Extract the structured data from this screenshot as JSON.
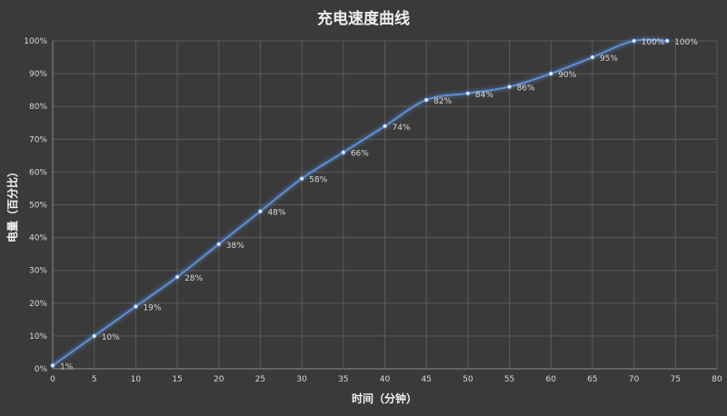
{
  "chart_data": {
    "type": "line",
    "title": "充电速度曲线",
    "xlabel": "时间（分钟）",
    "ylabel": "电量（百分比）",
    "xlim": [
      0,
      80
    ],
    "ylim": [
      0,
      100
    ],
    "x_ticks": [
      0,
      5,
      10,
      15,
      20,
      25,
      30,
      35,
      40,
      45,
      50,
      55,
      60,
      65,
      70,
      75,
      80
    ],
    "y_ticks": [
      "0%",
      "10%",
      "20%",
      "30%",
      "40%",
      "50%",
      "60%",
      "70%",
      "80%",
      "90%",
      "100%"
    ],
    "grid": true,
    "legend": "none",
    "line_color": "#5b8fd6",
    "x": [
      0,
      5,
      10,
      15,
      20,
      25,
      30,
      35,
      40,
      45,
      50,
      55,
      60,
      65,
      70,
      74
    ],
    "values": [
      1,
      10,
      19,
      28,
      38,
      48,
      58,
      66,
      74,
      82,
      84,
      86,
      90,
      95,
      100,
      100
    ],
    "data_labels": [
      "1%",
      "10%",
      "19%",
      "28%",
      "38%",
      "48%",
      "58%",
      "66%",
      "74%",
      "82%",
      "84%",
      "86%",
      "90%",
      "95%",
      "100%",
      "100%"
    ]
  }
}
